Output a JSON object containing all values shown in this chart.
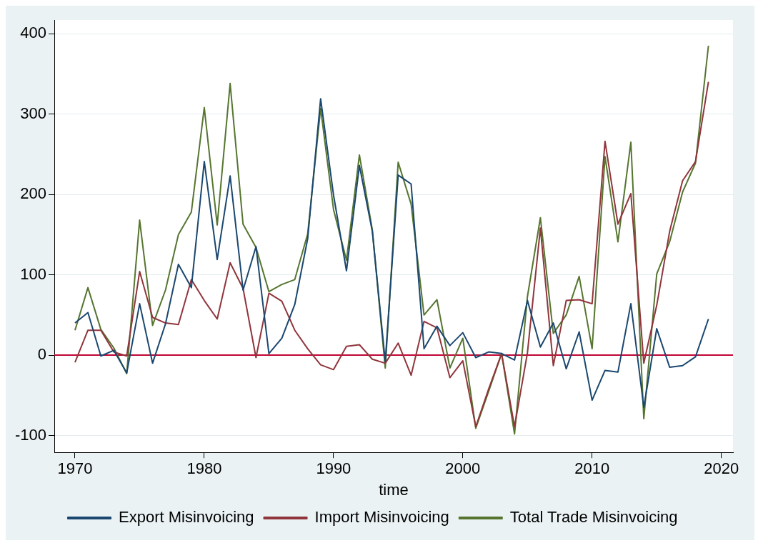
{
  "chart_data": {
    "type": "line",
    "xlabel": "time",
    "x": [
      1970,
      1971,
      1972,
      1973,
      1974,
      1975,
      1976,
      1977,
      1978,
      1979,
      1980,
      1981,
      1982,
      1983,
      1984,
      1985,
      1986,
      1987,
      1988,
      1989,
      1990,
      1991,
      1992,
      1993,
      1994,
      1995,
      1996,
      1997,
      1998,
      1999,
      2000,
      2001,
      2002,
      2003,
      2004,
      2005,
      2006,
      2007,
      2008,
      2009,
      2010,
      2011,
      2012,
      2013,
      2014,
      2015,
      2016,
      2017,
      2018,
      2019
    ],
    "series": [
      {
        "name": "Export Misinvoicing",
        "color": "#1a476f",
        "values": [
          40,
          53,
          -1,
          6,
          -22,
          64,
          -10,
          39,
          113,
          84,
          241,
          119,
          223,
          81,
          135,
          2,
          21,
          63,
          145,
          319,
          199,
          105,
          236,
          154,
          -8,
          224,
          213,
          8,
          36,
          12,
          28,
          -3,
          4,
          2,
          -6,
          68,
          10,
          40,
          -17,
          29,
          -56,
          -19,
          -21,
          64,
          -65,
          33,
          -15,
          -13,
          -2,
          45
        ]
      },
      {
        "name": "Import Misinvoicing",
        "color": "#90353b",
        "values": [
          -9,
          31,
          31,
          4,
          -1,
          104,
          47,
          40,
          38,
          94,
          68,
          45,
          115,
          83,
          -3,
          77,
          67,
          31,
          8,
          -12,
          -18,
          11,
          13,
          -5,
          -10,
          15,
          -25,
          42,
          34,
          -28,
          -7,
          -89,
          -42,
          2,
          -89,
          3,
          158,
          -13,
          68,
          69,
          64,
          266,
          163,
          201,
          -10,
          62,
          154,
          217,
          241,
          340
        ]
      },
      {
        "name": "Total Trade Misinvoicing",
        "color": "#55752f",
        "values": [
          31,
          84,
          32,
          9,
          -23,
          168,
          37,
          81,
          150,
          178,
          308,
          162,
          338,
          163,
          134,
          79,
          88,
          94,
          151,
          307,
          181,
          118,
          249,
          156,
          -16,
          240,
          188,
          50,
          69,
          -16,
          21,
          -91,
          -45,
          2,
          -98,
          73,
          171,
          27,
          50,
          98,
          8,
          247,
          141,
          265,
          -79,
          101,
          141,
          203,
          239,
          385
        ]
      }
    ],
    "xlim": [
      1968.4,
      2020.9
    ],
    "xticks": [
      1970,
      1980,
      1990,
      2000,
      2010,
      2020
    ],
    "ylim": [
      -121,
      417
    ],
    "yticks": [
      -100,
      0,
      100,
      200,
      300,
      400
    ],
    "grid": "y",
    "legend": "bottom",
    "marker": "none",
    "line_style": "solid",
    "ref_lines": [
      {
        "axis": "y",
        "value": 0,
        "color": "#c10534"
      }
    ]
  }
}
